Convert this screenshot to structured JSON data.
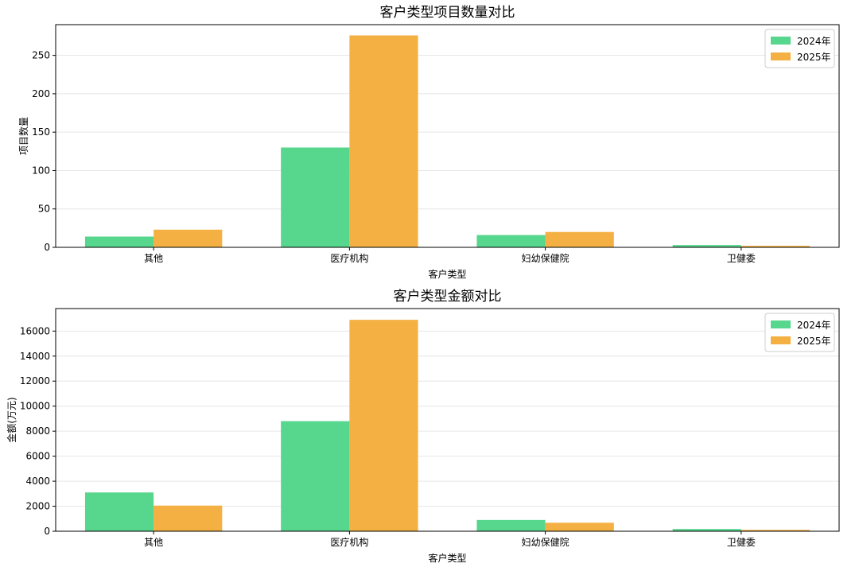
{
  "chart_data": [
    {
      "type": "bar",
      "title": "客户类型项目数量对比",
      "xlabel": "客户类型",
      "ylabel": "项目数量",
      "categories": [
        "其他",
        "医疗机构",
        "妇幼保健院",
        "卫健委"
      ],
      "series": [
        {
          "name": "2024年",
          "values": [
            14,
            130,
            16,
            3
          ],
          "color": "#57d68d"
        },
        {
          "name": "2025年",
          "values": [
            23,
            276,
            20,
            2
          ],
          "color": "#f4b042"
        }
      ],
      "ylim": [
        0,
        290
      ],
      "yticks": [
        0,
        50,
        100,
        150,
        200,
        250
      ],
      "grid": "y",
      "legend": "top-right"
    },
    {
      "type": "bar",
      "title": "客户类型金额对比",
      "xlabel": "客户类型",
      "ylabel": "金额(万元)",
      "categories": [
        "其他",
        "医疗机构",
        "妇幼保健院",
        "卫健委"
      ],
      "series": [
        {
          "name": "2024年",
          "values": [
            3100,
            8800,
            900,
            180
          ],
          "color": "#57d68d"
        },
        {
          "name": "2025年",
          "values": [
            2050,
            16900,
            680,
            110
          ],
          "color": "#f4b042"
        }
      ],
      "ylim": [
        0,
        17800
      ],
      "yticks": [
        0,
        2000,
        4000,
        6000,
        8000,
        10000,
        12000,
        14000,
        16000
      ],
      "grid": "y",
      "legend": "top-right"
    }
  ]
}
